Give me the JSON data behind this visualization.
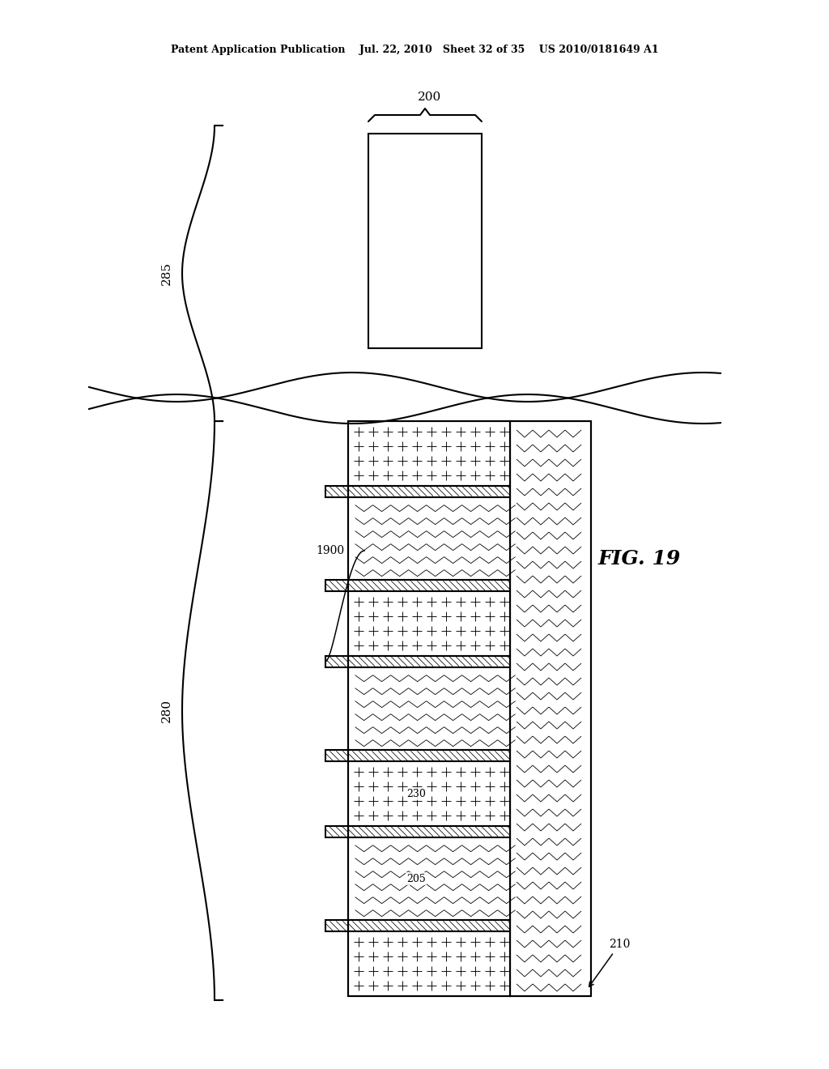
{
  "bg_color": "#ffffff",
  "line_color": "#000000",
  "header_text": "Patent Application Publication    Jul. 22, 2010   Sheet 32 of 35    US 2010/0181649 A1",
  "fig_label": "FIG. 19",
  "label_200": "200",
  "label_285": "285",
  "label_280": "280",
  "label_1900": "1900",
  "label_230": "230",
  "label_205": "205",
  "label_210": "210",
  "fig_w": 10.24,
  "fig_h": 13.2,
  "dpi": 100
}
